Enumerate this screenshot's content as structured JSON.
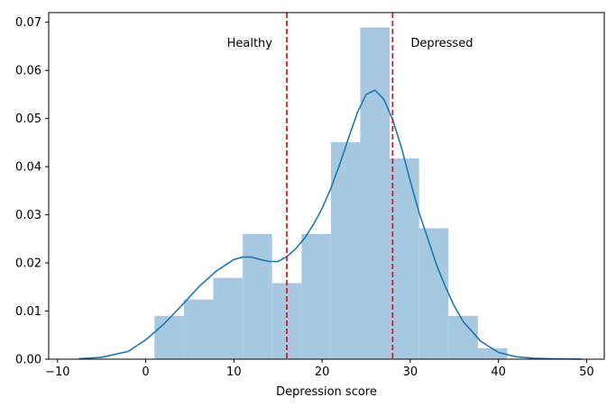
{
  "chart_data": {
    "type": "bar",
    "title": "",
    "xlabel": "Depression score",
    "ylabel": "",
    "xlim": [
      -11,
      52
    ],
    "ylim": [
      0,
      0.072
    ],
    "x_ticks": [
      -10,
      0,
      10,
      20,
      30,
      40,
      50
    ],
    "x_tick_labels": [
      "−10",
      "0",
      "10",
      "20",
      "30",
      "40",
      "50"
    ],
    "y_ticks": [
      0,
      0.01,
      0.02,
      0.03,
      0.04,
      0.05,
      0.06,
      0.07
    ],
    "y_tick_labels": [
      "0.00",
      "0.01",
      "0.02",
      "0.03",
      "0.04",
      "0.05",
      "0.06",
      "0.07"
    ],
    "grid": false,
    "colors": {
      "histogram": "#a6c8e0",
      "kde": "#1f77b4",
      "threshold": "#e31a1c"
    },
    "histogram": {
      "bin_edges": [
        1.0,
        4.33,
        7.67,
        11.0,
        14.33,
        17.67,
        21.0,
        24.33,
        27.67,
        31.0,
        34.33,
        37.67,
        41.0
      ],
      "values": [
        0.009,
        0.0124,
        0.0169,
        0.026,
        0.0158,
        0.026,
        0.0451,
        0.0689,
        0.0417,
        0.0272,
        0.009,
        0.0023
      ]
    },
    "kde": {
      "x": [
        -7.6,
        -5,
        -2,
        0,
        2,
        4,
        6,
        8,
        10,
        11,
        12,
        13,
        14,
        15,
        16,
        17,
        18,
        19,
        20,
        21,
        22,
        23,
        24,
        25,
        26,
        27,
        28,
        29,
        30,
        31,
        32,
        33,
        34,
        35,
        36,
        38,
        40,
        42,
        44,
        46,
        49.5
      ],
      "y": [
        0.0001,
        0.0004,
        0.0016,
        0.004,
        0.0072,
        0.011,
        0.015,
        0.0183,
        0.0207,
        0.0212,
        0.0212,
        0.0207,
        0.0203,
        0.0203,
        0.0213,
        0.0229,
        0.0251,
        0.0279,
        0.0313,
        0.0355,
        0.0405,
        0.0459,
        0.0512,
        0.055,
        0.0559,
        0.054,
        0.0498,
        0.044,
        0.037,
        0.0304,
        0.025,
        0.0195,
        0.015,
        0.011,
        0.0078,
        0.0037,
        0.0014,
        0.0005,
        0.0002,
        0.0001,
        0.0
      ]
    },
    "thresholds": [
      {
        "x": 16,
        "label": "Healthy"
      },
      {
        "x": 28,
        "label": "Depressed"
      }
    ]
  }
}
